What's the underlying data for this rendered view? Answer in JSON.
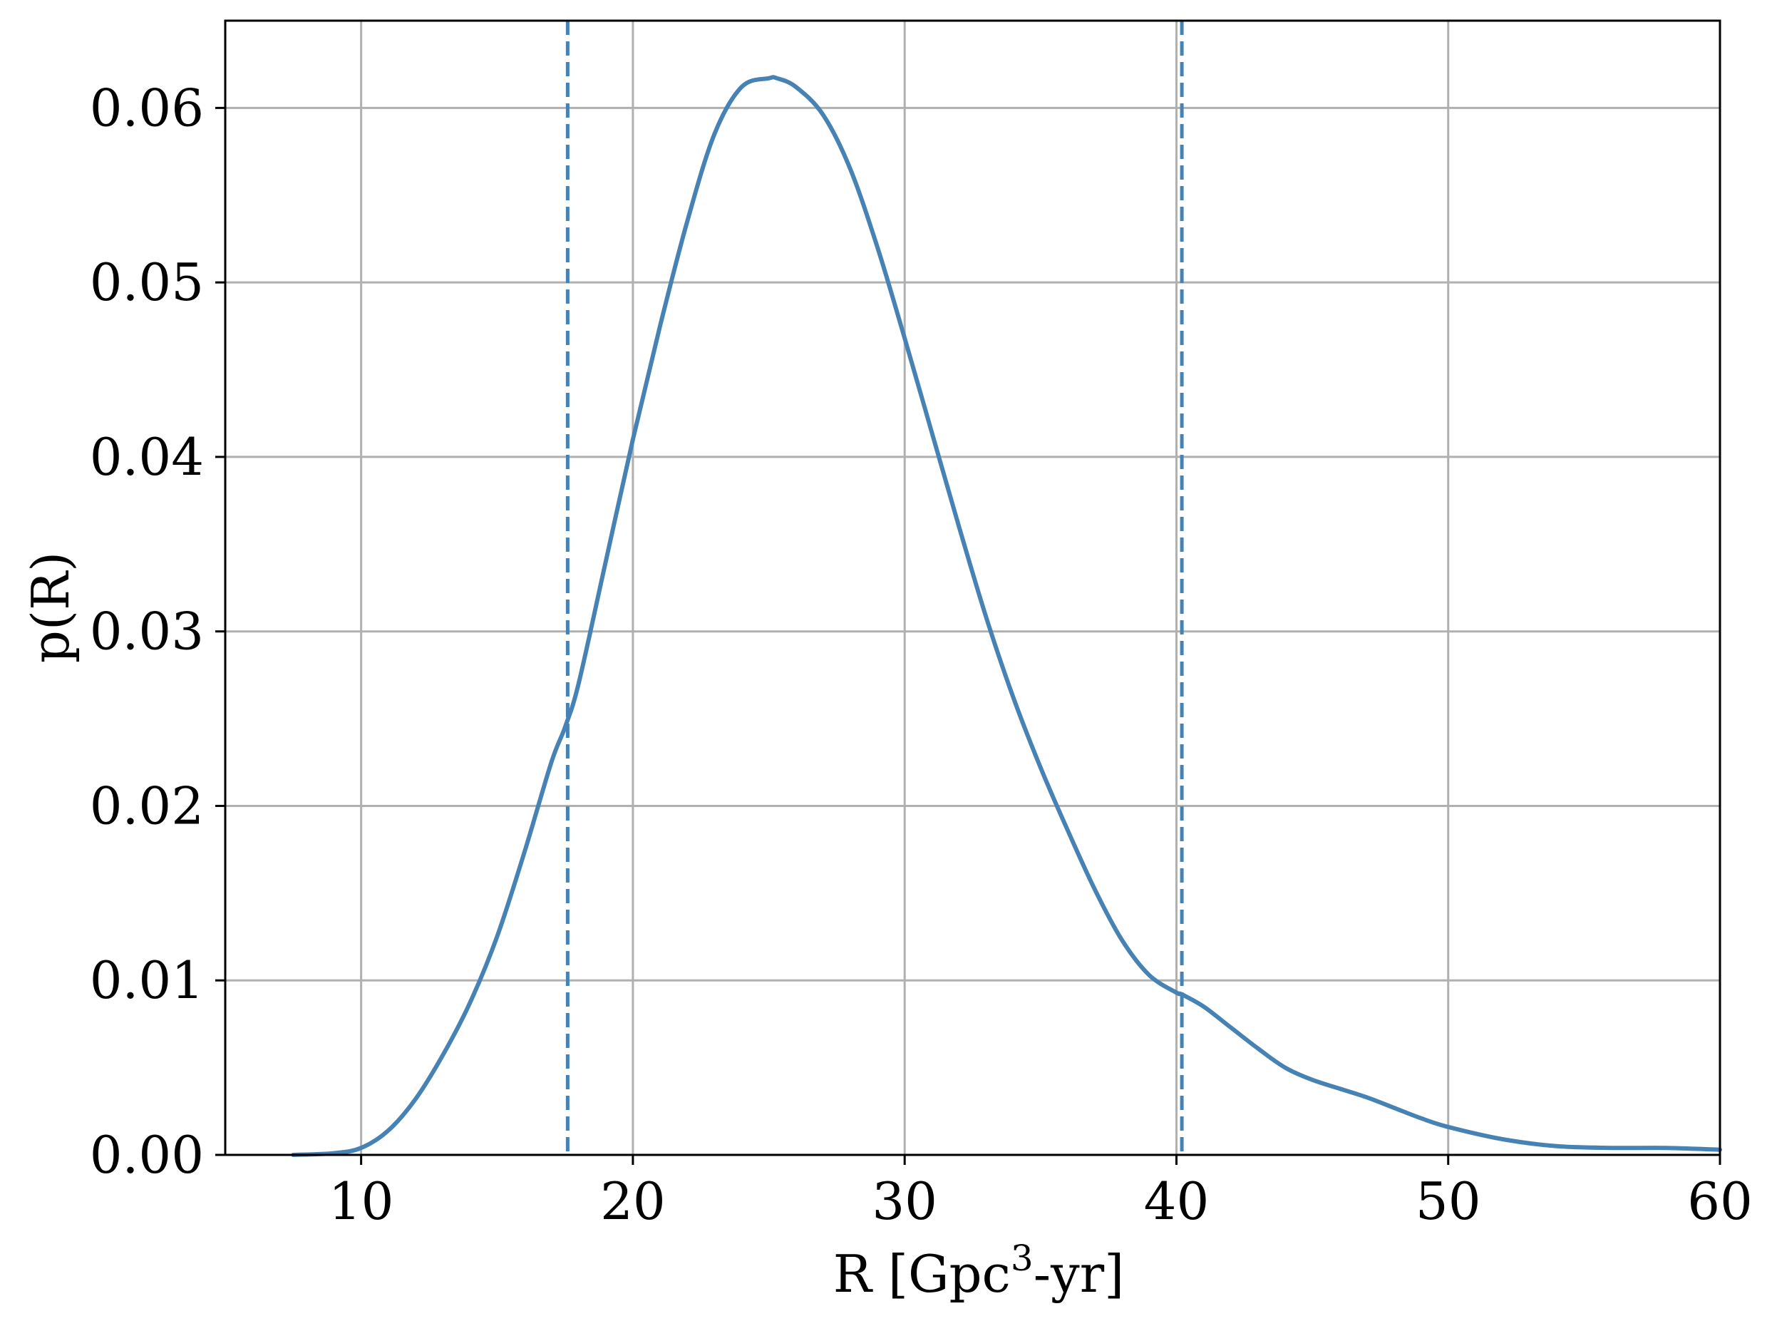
{
  "chart_data": {
    "type": "line",
    "title": "",
    "xlabel_main": "R [Gpc",
    "xlabel_sup": "3",
    "xlabel_tail": "-yr]",
    "ylabel": "p(R)",
    "xlim": [
      5,
      60
    ],
    "ylim": [
      0,
      0.065
    ],
    "grid": true,
    "x_ticks": [
      10,
      20,
      30,
      40,
      50,
      60
    ],
    "x_tick_labels": [
      "10",
      "20",
      "30",
      "40",
      "50",
      "60"
    ],
    "y_ticks": [
      0,
      0.01,
      0.02,
      0.03,
      0.04,
      0.05,
      0.06
    ],
    "y_tick_labels": [
      "0.00",
      "0.01",
      "0.02",
      "0.03",
      "0.04",
      "0.05",
      "0.06"
    ],
    "line_color": "#4682b4",
    "series": [
      {
        "x": [
          7.5,
          9,
          10,
          11,
          12,
          13,
          14,
          15,
          16,
          17,
          17.5,
          18,
          19,
          20,
          21,
          22,
          23,
          24,
          25,
          25.3,
          26,
          27,
          28,
          29,
          30,
          31,
          32,
          33,
          34,
          35,
          36,
          37,
          38,
          39,
          40,
          40.2,
          41,
          42,
          43,
          44,
          45,
          46,
          47,
          48,
          49,
          50,
          52,
          54,
          56,
          58,
          60
        ],
        "y": [
          0.0,
          0.0001,
          0.0004,
          0.0014,
          0.0032,
          0.0057,
          0.0087,
          0.0125,
          0.0173,
          0.0225,
          0.0245,
          0.027,
          0.034,
          0.041,
          0.0475,
          0.0535,
          0.0585,
          0.0612,
          0.0617,
          0.0617,
          0.0612,
          0.0596,
          0.0565,
          0.052,
          0.0468,
          0.0414,
          0.036,
          0.0308,
          0.0262,
          0.0222,
          0.0186,
          0.0152,
          0.0123,
          0.0103,
          0.0093,
          0.0092,
          0.0085,
          0.0073,
          0.0061,
          0.005,
          0.0043,
          0.0038,
          0.0033,
          0.0027,
          0.0021,
          0.0016,
          0.0009,
          0.0005,
          0.0004,
          0.0004,
          0.0003
        ]
      }
    ],
    "vertical_lines": [
      17.6,
      40.2
    ]
  }
}
